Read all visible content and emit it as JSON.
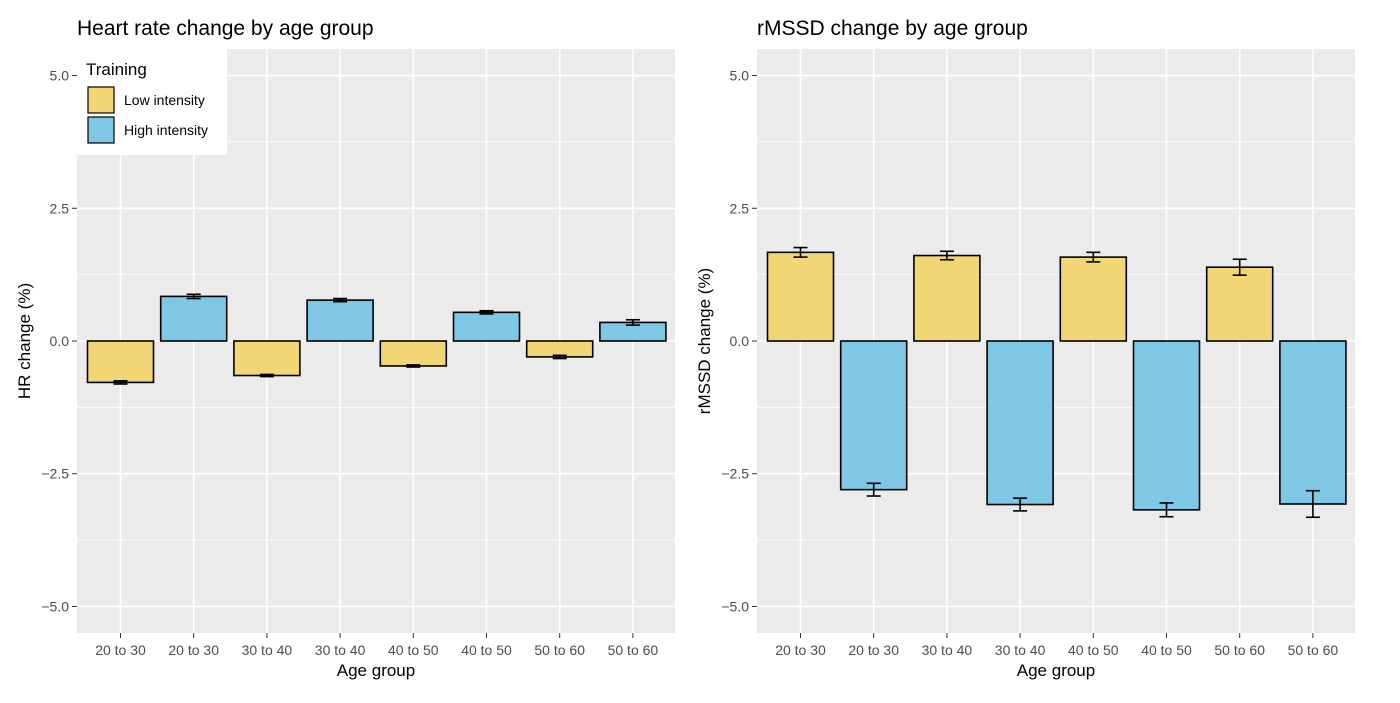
{
  "colors": {
    "panel_bg": "#EBEBEB",
    "grid": "#FFFFFF",
    "low": "#F2D675",
    "high": "#7EC8E6",
    "outline": "#000000"
  },
  "legend": {
    "title": "Training",
    "items": [
      {
        "label": "Low intensity",
        "color": "#F2D675"
      },
      {
        "label": "High intensity",
        "color": "#7EC8E6"
      }
    ],
    "placement": "top-left (inside left panel)"
  },
  "chart_data": [
    {
      "type": "bar",
      "title": "Heart rate change by age group",
      "xlabel": "Age group",
      "ylabel": "HR change (%)",
      "ylim": [
        -5.5,
        5.5
      ],
      "yticks": [
        "5.0",
        "2.5",
        "0.0",
        "−2.5",
        "−5.0"
      ],
      "ytick_values": [
        5.0,
        2.5,
        0.0,
        -2.5,
        -5.0
      ],
      "grid": true,
      "categories": [
        "20 to 30",
        "20 to 30",
        "30 to 40",
        "30 to 40",
        "40 to 50",
        "40 to 50",
        "50 to 60",
        "50 to 60"
      ],
      "series": [
        {
          "values": [
            -0.78,
            0.84,
            -0.65,
            0.77,
            -0.47,
            0.54,
            -0.3,
            0.35
          ],
          "groups": [
            "low",
            "high",
            "low",
            "high",
            "low",
            "high",
            "low",
            "high"
          ],
          "err": [
            0.03,
            0.04,
            0.02,
            0.03,
            0.02,
            0.03,
            0.03,
            0.05
          ]
        }
      ],
      "legend": true
    },
    {
      "type": "bar",
      "title": "rMSSD change by age group",
      "xlabel": "Age group",
      "ylabel": "rMSSD change (%)",
      "ylim": [
        -5.5,
        5.5
      ],
      "yticks": [
        "5.0",
        "2.5",
        "0.0",
        "−2.5",
        "−5.0"
      ],
      "ytick_values": [
        5.0,
        2.5,
        0.0,
        -2.5,
        -5.0
      ],
      "grid": true,
      "categories": [
        "20 to 30",
        "20 to 30",
        "30 to 40",
        "30 to 40",
        "40 to 50",
        "40 to 50",
        "50 to 60",
        "50 to 60"
      ],
      "series": [
        {
          "values": [
            1.67,
            -2.8,
            1.61,
            -3.08,
            1.58,
            -3.18,
            1.39,
            -3.07
          ],
          "groups": [
            "low",
            "high",
            "low",
            "high",
            "low",
            "high",
            "low",
            "high"
          ],
          "err": [
            0.09,
            0.12,
            0.08,
            0.12,
            0.09,
            0.13,
            0.15,
            0.25
          ]
        }
      ],
      "legend": false
    }
  ]
}
